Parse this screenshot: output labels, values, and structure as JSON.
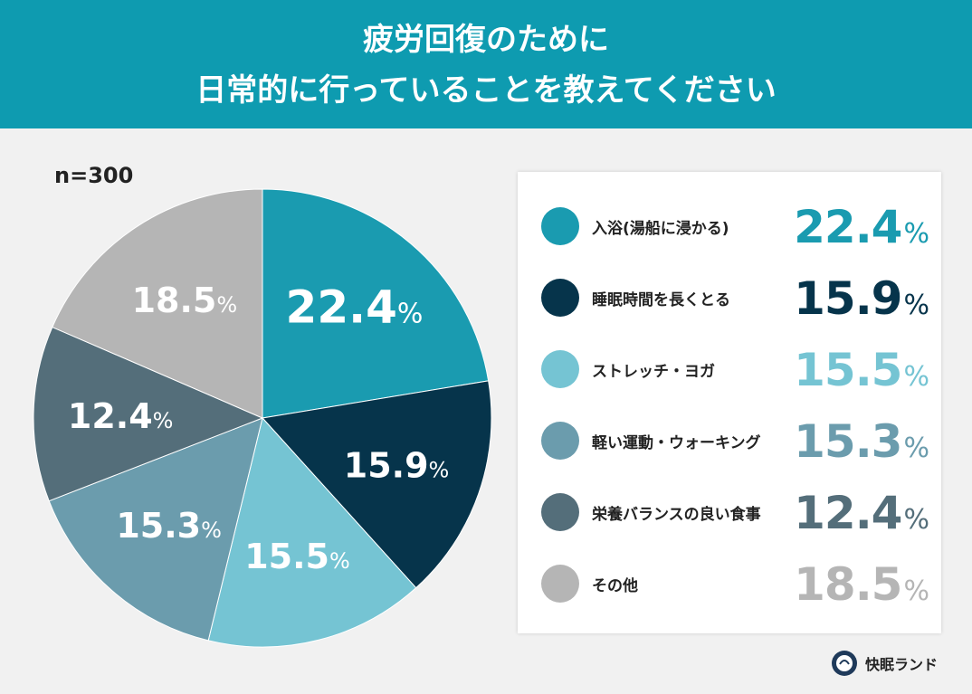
{
  "title_lines": [
    "疲労回復のために",
    "日常的に行っていることを教えてください"
  ],
  "sample_size": "n=300",
  "brand": "快眠ランド",
  "chart_data": {
    "type": "pie",
    "title": "疲労回復のために日常的に行っていることを教えてください",
    "unit": "%",
    "start": "top",
    "direction": "clockwise",
    "legend_placement": "right",
    "categories": [
      "入浴(湯船に浸かる)",
      "睡眠時間を長くとる",
      "ストレッチ・ヨガ",
      "軽い運動・ウォーキング",
      "栄養バランスの良い食事",
      "その他"
    ],
    "values": [
      22.4,
      15.9,
      15.5,
      15.3,
      12.4,
      18.5
    ],
    "labels": [
      "22.4",
      "15.9",
      "15.5",
      "15.3",
      "12.4",
      "18.5"
    ],
    "colors": [
      "#1a9bb0",
      "#06344b",
      "#75c4d3",
      "#6b9cad",
      "#546e7a",
      "#b5b5b5"
    ]
  }
}
